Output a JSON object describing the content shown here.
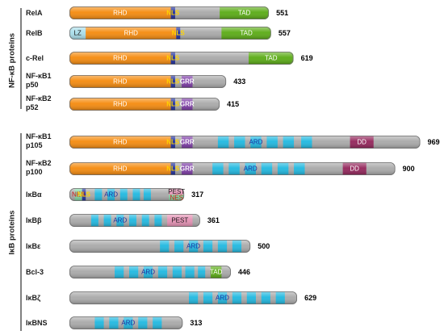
{
  "groups": [
    {
      "label": "NF-κB proteins"
    },
    {
      "label": "IκB proteins"
    }
  ],
  "colors": {
    "body": "#a9a9a9",
    "RHD": "#f58a0d",
    "NLS": "#1f2f9e",
    "NES": "#7fd6a0",
    "TAD": "#5aab14",
    "LZ": "#a8ddea",
    "GRR": "#7d3ca6",
    "ARD": "#1fb8e0",
    "DD": "#93245a",
    "PEST": "#e591b4",
    "ARD_text": "#1f2f9e",
    "NLS_text": "#ffd400",
    "GRR_text": "#ffffff",
    "DD_text": "#ffffff",
    "RHD_text": "#ffffff",
    "TAD_text": "#ffffff",
    "NES_text": "#d11a1a"
  },
  "proteins": [
    {
      "name": [
        "RelA"
      ],
      "length": "551",
      "span": [
        0,
        551
      ],
      "domains": [
        {
          "type": "RHD",
          "range": [
            0,
            280
          ],
          "label": "RHD"
        },
        {
          "type": "NLS",
          "range": [
            280,
            292
          ],
          "label": "NLS"
        },
        {
          "type": "TAD",
          "range": [
            415,
            551
          ],
          "label": "TAD"
        }
      ]
    },
    {
      "name": [
        "RelB"
      ],
      "length": "557",
      "span": [
        0,
        557
      ],
      "domains": [
        {
          "type": "LZ",
          "range": [
            0,
            45
          ],
          "label": "LZ"
        },
        {
          "type": "RHD",
          "range": [
            45,
            295
          ],
          "label": "RHD"
        },
        {
          "type": "NLS",
          "range": [
            295,
            306
          ],
          "label": "NLS"
        },
        {
          "type": "TAD",
          "range": [
            420,
            557
          ],
          "label": "TAD"
        }
      ]
    },
    {
      "name": [
        "c-Rel"
      ],
      "length": "619",
      "span": [
        0,
        619
      ],
      "domains": [
        {
          "type": "RHD",
          "range": [
            0,
            280
          ],
          "label": "RHD"
        },
        {
          "type": "NLS",
          "range": [
            280,
            292
          ],
          "label": "NLS"
        },
        {
          "type": "TAD",
          "range": [
            495,
            619
          ],
          "label": "TAD"
        }
      ]
    },
    {
      "name": [
        "NF-κB1",
        "p50"
      ],
      "length": "433",
      "span": [
        0,
        433
      ],
      "domains": [
        {
          "type": "RHD",
          "range": [
            0,
            280
          ],
          "label": "RHD"
        },
        {
          "type": "NLS",
          "range": [
            280,
            292
          ],
          "label": "NLS"
        },
        {
          "type": "GRR",
          "range": [
            310,
            340
          ],
          "label": "GRR"
        }
      ]
    },
    {
      "name": [
        "NF-κB2",
        "p52"
      ],
      "length": "415",
      "span": [
        0,
        415
      ],
      "domains": [
        {
          "type": "RHD",
          "range": [
            0,
            280
          ],
          "label": "RHD"
        },
        {
          "type": "NLS",
          "range": [
            280,
            292
          ],
          "label": "NLS"
        },
        {
          "type": "GRR",
          "range": [
            310,
            340
          ],
          "label": "GRR"
        }
      ]
    },
    {
      "name": [
        "NF-κB1",
        "p105"
      ],
      "length": "969",
      "span": [
        0,
        969
      ],
      "domains": [
        {
          "type": "RHD",
          "range": [
            0,
            280
          ],
          "label": "RHD"
        },
        {
          "type": "NLS",
          "range": [
            280,
            292
          ],
          "label": "NLS"
        },
        {
          "type": "GRR",
          "range": [
            310,
            340
          ],
          "label": "GRR"
        },
        {
          "type": "ARD",
          "range": [
            410,
            440
          ]
        },
        {
          "type": "ARD",
          "range": [
            455,
            485
          ]
        },
        {
          "type": "ARD",
          "range": [
            500,
            530
          ],
          "label": "ARD"
        },
        {
          "type": "ARD",
          "range": [
            545,
            575
          ]
        },
        {
          "type": "ARD",
          "range": [
            590,
            620
          ]
        },
        {
          "type": "ARD",
          "range": [
            640,
            670
          ]
        },
        {
          "type": "DD",
          "range": [
            775,
            840
          ],
          "label": "DD"
        }
      ]
    },
    {
      "name": [
        "NF-κB2",
        "p100"
      ],
      "length": "900",
      "span": [
        0,
        900
      ],
      "domains": [
        {
          "type": "RHD",
          "range": [
            0,
            280
          ],
          "label": "RHD"
        },
        {
          "type": "NLS",
          "range": [
            280,
            292
          ],
          "label": "NLS"
        },
        {
          "type": "GRR",
          "range": [
            310,
            340
          ],
          "label": "GRR"
        },
        {
          "type": "ARD",
          "range": [
            395,
            425
          ]
        },
        {
          "type": "ARD",
          "range": [
            440,
            470
          ]
        },
        {
          "type": "ARD",
          "range": [
            485,
            515
          ],
          "label": "ARD"
        },
        {
          "type": "ARD",
          "range": [
            530,
            560
          ]
        },
        {
          "type": "ARD",
          "range": [
            575,
            605
          ]
        },
        {
          "type": "ARD",
          "range": [
            620,
            650
          ]
        },
        {
          "type": "DD",
          "range": [
            755,
            820
          ],
          "label": "DD"
        }
      ]
    },
    {
      "name": [
        "IκBα"
      ],
      "length": "317",
      "span": [
        0,
        317
      ],
      "domains": [
        {
          "type": "NES",
          "range": [
            15,
            35
          ],
          "label": "NES"
        },
        {
          "type": "NLS",
          "range": [
            35,
            45
          ],
          "label": "NLS"
        },
        {
          "type": "ARD",
          "range": [
            70,
            90
          ]
        },
        {
          "type": "ARD",
          "range": [
            105,
            125
          ],
          "label": "ARD"
        },
        {
          "type": "ARD",
          "range": [
            140,
            160
          ]
        },
        {
          "type": "ARD",
          "range": [
            175,
            195
          ]
        },
        {
          "type": "ARD",
          "range": [
            205,
            225
          ]
        },
        {
          "type": "PEST",
          "range": [
            275,
            317
          ],
          "label": "PEST"
        },
        {
          "type": "NES",
          "range": [
            275,
            317
          ],
          "label": "NES",
          "half": "bottom"
        }
      ]
    },
    {
      "name": [
        "IκBβ"
      ],
      "length": "361",
      "span": [
        0,
        361
      ],
      "domains": [
        {
          "type": "ARD",
          "range": [
            60,
            80
          ]
        },
        {
          "type": "ARD",
          "range": [
            95,
            115
          ]
        },
        {
          "type": "ARD",
          "range": [
            130,
            150
          ],
          "label": "ARD"
        },
        {
          "type": "ARD",
          "range": [
            165,
            185
          ]
        },
        {
          "type": "ARD",
          "range": [
            200,
            220
          ]
        },
        {
          "type": "ARD",
          "range": [
            235,
            255
          ]
        },
        {
          "type": "PEST",
          "range": [
            270,
            340
          ],
          "label": "PEST"
        }
      ]
    },
    {
      "name": [
        "IκBε"
      ],
      "length": "500",
      "span": [
        0,
        500
      ],
      "domains": [
        {
          "type": "ARD",
          "range": [
            250,
            275
          ]
        },
        {
          "type": "ARD",
          "range": [
            290,
            315
          ]
        },
        {
          "type": "ARD",
          "range": [
            330,
            355
          ],
          "label": "ARD"
        },
        {
          "type": "ARD",
          "range": [
            370,
            395
          ]
        },
        {
          "type": "ARD",
          "range": [
            410,
            435
          ]
        },
        {
          "type": "ARD",
          "range": [
            450,
            475
          ]
        }
      ]
    },
    {
      "name": [
        "Bcl-3"
      ],
      "length": "446",
      "span": [
        0,
        446
      ],
      "domains": [
        {
          "type": "ARD",
          "range": [
            125,
            150
          ]
        },
        {
          "type": "ARD",
          "range": [
            165,
            190
          ]
        },
        {
          "type": "ARD",
          "range": [
            205,
            230
          ],
          "label": "ARD"
        },
        {
          "type": "ARD",
          "range": [
            245,
            270
          ]
        },
        {
          "type": "ARD",
          "range": [
            285,
            310
          ]
        },
        {
          "type": "ARD",
          "range": [
            320,
            345
          ]
        },
        {
          "type": "ARD",
          "range": [
            355,
            375
          ]
        },
        {
          "type": "TAD",
          "range": [
            390,
            420
          ],
          "label": "TAD"
        }
      ]
    },
    {
      "name": [
        "IκBζ"
      ],
      "length": "629",
      "span": [
        0,
        629
      ],
      "domains": [
        {
          "type": "ARD",
          "range": [
            330,
            355
          ]
        },
        {
          "type": "ARD",
          "range": [
            370,
            395
          ]
        },
        {
          "type": "ARD",
          "range": [
            410,
            435
          ],
          "label": "ARD"
        },
        {
          "type": "ARD",
          "range": [
            450,
            475
          ]
        },
        {
          "type": "ARD",
          "range": [
            490,
            515
          ]
        },
        {
          "type": "ARD",
          "range": [
            530,
            555
          ]
        },
        {
          "type": "ARD",
          "range": [
            570,
            595
          ]
        }
      ]
    },
    {
      "name": [
        "IκBNS"
      ],
      "length": "313",
      "span": [
        0,
        313
      ],
      "domains": [
        {
          "type": "ARD",
          "range": [
            70,
            95
          ]
        },
        {
          "type": "ARD",
          "range": [
            110,
            135
          ]
        },
        {
          "type": "ARD",
          "range": [
            150,
            175
          ],
          "label": "ARD"
        },
        {
          "type": "ARD",
          "range": [
            190,
            215
          ]
        },
        {
          "type": "ARD",
          "range": [
            230,
            255
          ]
        }
      ]
    }
  ]
}
